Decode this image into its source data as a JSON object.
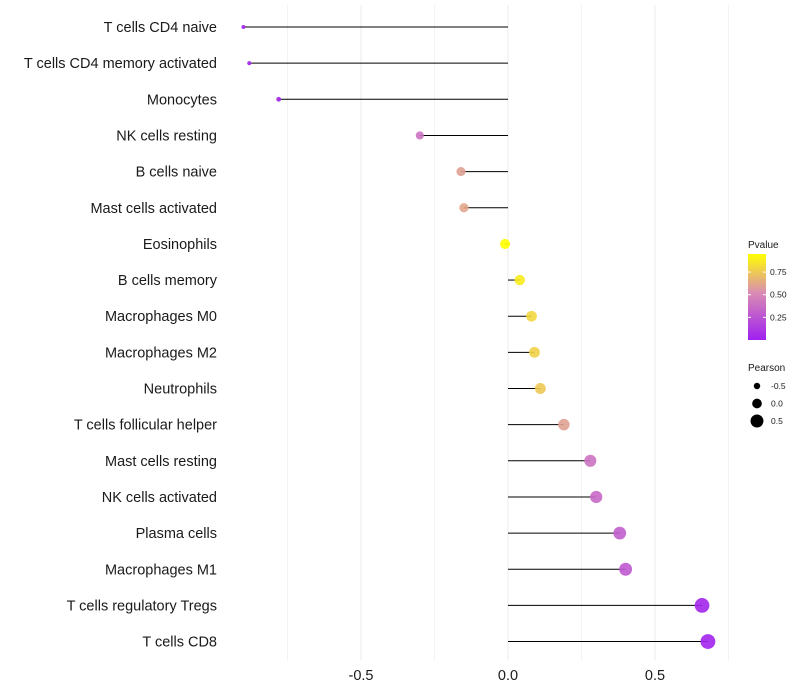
{
  "chart_data": {
    "type": "lollipop",
    "title": "",
    "xlabel": "",
    "ylabel": "",
    "xlim": [
      -0.9,
      0.8
    ],
    "xticks": [
      -0.5,
      0.0,
      0.5
    ],
    "xtick_labels": [
      "-0.5",
      "0.0",
      "0.5"
    ],
    "grid": true,
    "categories": [
      "T cells CD4 naive",
      "T cells CD4 memory activated",
      "Monocytes",
      "NK cells resting",
      "B cells naive",
      "Mast cells activated",
      "Eosinophils",
      "B cells memory",
      "Macrophages M0",
      "Macrophages M2",
      "Neutrophils",
      "T cells follicular helper",
      "Mast cells resting",
      "NK cells activated",
      "Plasma cells",
      "Macrophages M1",
      "T cells regulatory  Tregs",
      "T cells CD8"
    ],
    "values": [
      -0.9,
      -0.88,
      -0.78,
      -0.3,
      -0.16,
      -0.15,
      -0.01,
      0.04,
      0.08,
      0.09,
      0.11,
      0.19,
      0.28,
      0.3,
      0.38,
      0.4,
      0.66,
      0.68
    ],
    "pvalues": [
      0.02,
      0.02,
      0.03,
      0.4,
      0.6,
      0.62,
      0.99,
      0.88,
      0.8,
      0.78,
      0.75,
      0.6,
      0.4,
      0.35,
      0.3,
      0.28,
      0.03,
      0.02
    ],
    "legend_pvalue": {
      "title": "Pvalue",
      "ticks": [
        0.75,
        0.5,
        0.25
      ],
      "tick_labels": [
        "0.75",
        "0.50",
        "0.25"
      ],
      "range": [
        0.0,
        0.95
      ],
      "color_low": "#a020f0",
      "color_mid": "#d98cb3",
      "color_high": "#ffff00",
      "placement": "right"
    },
    "legend_pearson": {
      "title": "Pearson",
      "values": [
        -0.5,
        0.0,
        0.5
      ],
      "labels": [
        "-0.5",
        "0.0",
        "0.5"
      ],
      "placement": "right"
    },
    "segment_color": "#000000",
    "grid_color": "#ebebeb"
  }
}
